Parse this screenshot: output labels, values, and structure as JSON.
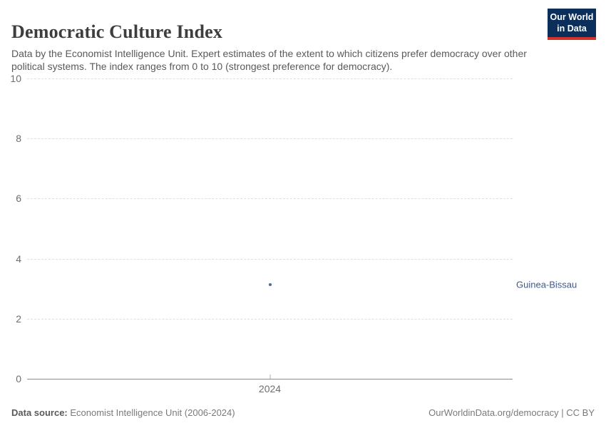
{
  "header": {
    "title": "Democratic Culture Index",
    "subtitle": "Data by the Economist Intelligence Unit. Expert estimates of the extent to which citizens prefer democracy over other political systems. The index ranges from 0 to 10 (strongest preference for democracy)."
  },
  "logo": {
    "line1": "Our World",
    "line2": "in Data",
    "bg_color": "#0b2e5b",
    "bar_color": "#cf3529"
  },
  "chart_data": {
    "type": "scatter",
    "title": "Democratic Culture Index",
    "xlabel": "",
    "ylabel": "",
    "xlim": [
      2023,
      2025
    ],
    "ylim": [
      0,
      10
    ],
    "yticks": [
      0,
      2,
      4,
      6,
      8,
      10
    ],
    "xticks": [
      2024
    ],
    "grid": "horizontal dashed, solid baseline at 0",
    "legend_position": "entity label right of plot at point height",
    "point_color": "#4c6a9c",
    "entity_label_color": "#3d5a8f",
    "series": [
      {
        "name": "Guinea-Bissau",
        "points": [
          {
            "x": 2024,
            "y": 3.13
          }
        ]
      }
    ]
  },
  "footer": {
    "source_label": "Data source:",
    "source_value": " Economist Intelligence Unit (2006-2024)",
    "rights": "OurWorldinData.org/democracy | CC BY"
  }
}
